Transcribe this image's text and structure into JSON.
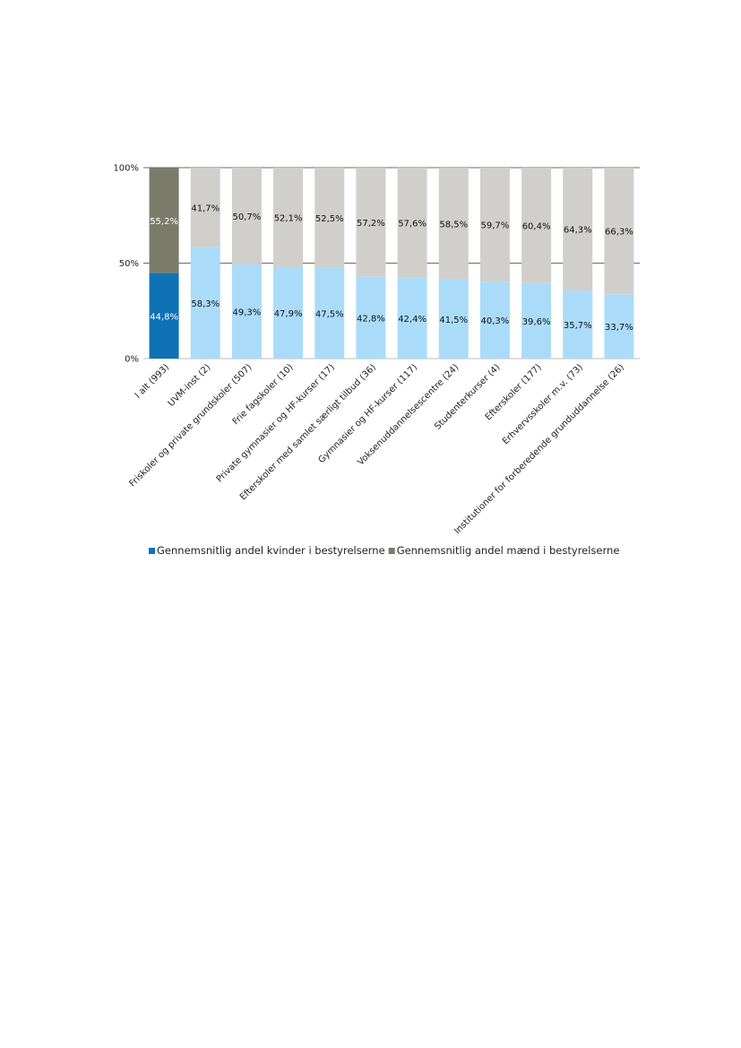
{
  "chart_data": {
    "type": "bar",
    "stacked": true,
    "percent": true,
    "title": "",
    "xlabel": "",
    "ylabel": "",
    "ylim": [
      0,
      100
    ],
    "yticks": [
      "0%",
      "50%",
      "100%"
    ],
    "grid": true,
    "legend_position": "bottom",
    "categories": [
      "I alt (993)",
      "UVM-inst (2)",
      "Friskoler og private grundskoler (507)",
      "Frie fagskoler (10)",
      "Private gymnasier og HF-kurser (17)",
      "Efterskoler med samlet særligt tilbud (36)",
      "Gymnasier og HF-kurser (117)",
      "Voksenuddannelsescentre (24)",
      "Studenterkurser (4)",
      "Efterskoler (177)",
      "Erhvervsskoler m.v. (73)",
      "Institutioner for forberedende grunduddannelse (26)"
    ],
    "series": [
      {
        "name": "Gennemsnitlig andel kvinder i bestyrelserne",
        "values": [
          44.8,
          58.3,
          49.3,
          47.9,
          47.5,
          42.8,
          42.4,
          41.5,
          40.3,
          39.6,
          35.7,
          33.7
        ],
        "labels": [
          "44,8%",
          "58,3%",
          "49,3%",
          "47,9%",
          "47,5%",
          "42,8%",
          "42,4%",
          "41,5%",
          "40,3%",
          "39,6%",
          "35,7%",
          "33,7%"
        ],
        "color": "#0e72b5",
        "color_other": "#aadcfa"
      },
      {
        "name": "Gennemsnitlig andel mænd i bestyrelserne",
        "values": [
          55.2,
          41.7,
          50.7,
          52.1,
          52.5,
          57.2,
          57.6,
          58.5,
          59.7,
          60.4,
          64.3,
          66.3
        ],
        "labels": [
          "55,2%",
          "41,7%",
          "50,7%",
          "52,1%",
          "52,5%",
          "57,2%",
          "57,6%",
          "58,5%",
          "59,7%",
          "60,4%",
          "64,3%",
          "66,3%"
        ],
        "color": "#7b7b6a",
        "color_other": "#d0cfcb"
      }
    ]
  }
}
